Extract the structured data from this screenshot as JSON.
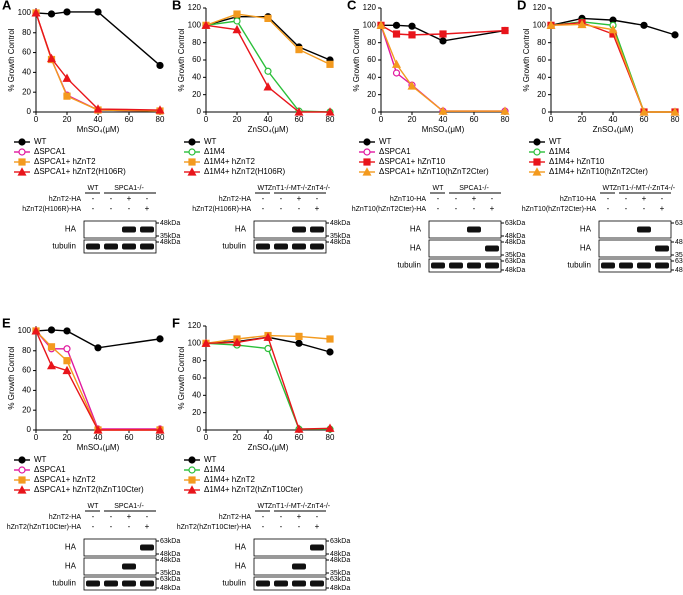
{
  "chart_data": [
    {
      "type": "line",
      "panel": "A",
      "ylabel": "% Growth Control",
      "xlabel": "MnSO₄(μM)",
      "x": [
        0,
        10,
        20,
        40,
        80
      ],
      "xlim": [
        0,
        80
      ],
      "xticks": [
        0,
        20,
        40,
        60,
        80
      ],
      "ylim": [
        0,
        105
      ],
      "yticks": [
        0,
        20,
        40,
        60,
        80,
        100
      ],
      "series": [
        {
          "name": "WT",
          "color": "#000000",
          "marker": "circle",
          "filled": true,
          "values": [
            100,
            99,
            101,
            101,
            47
          ]
        },
        {
          "name": "ΔSPCA1",
          "color": "#e0199f",
          "marker": "circle",
          "filled": false,
          "values": [
            100,
            53,
            17,
            2,
            1
          ]
        },
        {
          "name": "ΔSPCA1+ hZnT2",
          "color": "#f39a1e",
          "marker": "square",
          "filled": true,
          "values": [
            100,
            53,
            16,
            2,
            1
          ]
        },
        {
          "name": "ΔSPCA1+ hZnT2(H106R)",
          "color": "#e8151b",
          "marker": "triangle",
          "filled": true,
          "values": [
            100,
            54,
            34,
            3,
            2
          ]
        }
      ]
    },
    {
      "type": "line",
      "panel": "B",
      "ylabel": "% Growth Control",
      "xlabel": "ZnSO₄(μM)",
      "x": [
        0,
        20,
        40,
        60,
        80
      ],
      "xlim": [
        0,
        80
      ],
      "xticks": [
        0,
        20,
        40,
        60,
        80
      ],
      "ylim": [
        0,
        120
      ],
      "yticks": [
        0,
        20,
        40,
        60,
        80,
        100,
        120
      ],
      "series": [
        {
          "name": "WT",
          "color": "#000000",
          "marker": "circle",
          "filled": true,
          "values": [
            100,
            110,
            110,
            75,
            60
          ]
        },
        {
          "name": "Δ1M4",
          "color": "#2bbf3a",
          "marker": "circle",
          "filled": false,
          "values": [
            100,
            105,
            47,
            1,
            0
          ]
        },
        {
          "name": "Δ1M4+ hZnT2",
          "color": "#f39a1e",
          "marker": "square",
          "filled": true,
          "values": [
            100,
            113,
            108,
            72,
            55
          ]
        },
        {
          "name": "Δ1M4+ hZnT2(H106R)",
          "color": "#e8151b",
          "marker": "triangle",
          "filled": true,
          "values": [
            100,
            95,
            29,
            0,
            0
          ]
        }
      ]
    },
    {
      "type": "line",
      "panel": "C",
      "ylabel": "% Growth Control",
      "xlabel": "MnSO₄(μM)",
      "x": [
        0,
        10,
        20,
        40,
        80
      ],
      "xlim": [
        0,
        80
      ],
      "xticks": [
        0,
        20,
        40,
        60,
        80
      ],
      "ylim": [
        0,
        120
      ],
      "yticks": [
        0,
        20,
        40,
        60,
        80,
        100,
        120
      ],
      "series": [
        {
          "name": "WT",
          "color": "#000000",
          "marker": "circle",
          "filled": true,
          "values": [
            100,
            100,
            99,
            82,
            94
          ]
        },
        {
          "name": "ΔSPCA1",
          "color": "#e0199f",
          "marker": "circle",
          "filled": false,
          "values": [
            100,
            45,
            31,
            1,
            1
          ]
        },
        {
          "name": "ΔSPCA1+ hZnT10",
          "color": "#e8151b",
          "marker": "square",
          "filled": true,
          "values": [
            100,
            90,
            89,
            90,
            94
          ]
        },
        {
          "name": "ΔSPCA1+ hZnT10(hZnT2Cter)",
          "color": "#f39a1e",
          "marker": "triangle",
          "filled": true,
          "values": [
            100,
            55,
            30,
            1,
            1
          ]
        }
      ]
    },
    {
      "type": "line",
      "panel": "D",
      "ylabel": "% Growth Control",
      "xlabel": "ZnSO₄(μM)",
      "x": [
        0,
        20,
        40,
        60,
        80
      ],
      "xlim": [
        0,
        80
      ],
      "xticks": [
        0,
        20,
        40,
        60,
        80
      ],
      "ylim": [
        0,
        120
      ],
      "yticks": [
        0,
        20,
        40,
        60,
        80,
        100,
        120
      ],
      "series": [
        {
          "name": "WT",
          "color": "#000000",
          "marker": "circle",
          "filled": true,
          "values": [
            100,
            108,
            106,
            100,
            89
          ]
        },
        {
          "name": "Δ1M4",
          "color": "#2bbf3a",
          "marker": "circle",
          "filled": false,
          "values": [
            100,
            104,
            100,
            0,
            0
          ]
        },
        {
          "name": "Δ1M4+ hZnT10",
          "color": "#e8151b",
          "marker": "square",
          "filled": true,
          "values": [
            100,
            103,
            90,
            0,
            0
          ]
        },
        {
          "name": "Δ1M4+ hZnT10(hZnT2Cter)",
          "color": "#f39a1e",
          "marker": "triangle",
          "filled": true,
          "values": [
            100,
            101,
            95,
            0,
            0
          ]
        }
      ]
    },
    {
      "type": "line",
      "panel": "E",
      "ylabel": "% Growth Control",
      "xlabel": "MnSO₄(μM)",
      "x": [
        0,
        10,
        20,
        40,
        80
      ],
      "xlim": [
        0,
        80
      ],
      "xticks": [
        0,
        20,
        40,
        60,
        80
      ],
      "ylim": [
        0,
        105
      ],
      "yticks": [
        0,
        20,
        40,
        60,
        80,
        100
      ],
      "series": [
        {
          "name": "WT",
          "color": "#000000",
          "marker": "circle",
          "filled": true,
          "values": [
            100,
            101,
            100,
            83,
            92
          ]
        },
        {
          "name": "ΔSPCA1",
          "color": "#e0199f",
          "marker": "circle",
          "filled": false,
          "values": [
            100,
            82,
            82,
            1,
            1
          ]
        },
        {
          "name": "ΔSPCA1+ hZnT2",
          "color": "#f39a1e",
          "marker": "square",
          "filled": true,
          "values": [
            100,
            84,
            70,
            0,
            0
          ]
        },
        {
          "name": "ΔSPCA1+ hZnT2(hZnT10Cter)",
          "color": "#e8151b",
          "marker": "triangle",
          "filled": true,
          "values": [
            100,
            65,
            60,
            0,
            0
          ]
        }
      ]
    },
    {
      "type": "line",
      "panel": "F",
      "ylabel": "% Growth Control",
      "xlabel": "ZnSO₄(μM)",
      "x": [
        0,
        20,
        40,
        60,
        80
      ],
      "xlim": [
        0,
        80
      ],
      "xticks": [
        0,
        20,
        40,
        60,
        80
      ],
      "ylim": [
        0,
        120
      ],
      "yticks": [
        0,
        20,
        40,
        60,
        80,
        100,
        120
      ],
      "series": [
        {
          "name": "WT",
          "color": "#000000",
          "marker": "circle",
          "filled": true,
          "values": [
            100,
            102,
            107,
            100,
            90
          ]
        },
        {
          "name": "Δ1M4",
          "color": "#2bbf3a",
          "marker": "circle",
          "filled": false,
          "values": [
            100,
            98,
            94,
            1,
            1
          ]
        },
        {
          "name": "Δ1M4+ hZnT2",
          "color": "#f39a1e",
          "marker": "square",
          "filled": true,
          "values": [
            100,
            105,
            109,
            108,
            105
          ]
        },
        {
          "name": "Δ1M4+ hZnT2(hZnT10Cter)",
          "color": "#e8151b",
          "marker": "triangle",
          "filled": true,
          "values": [
            100,
            101,
            107,
            1,
            2
          ]
        }
      ]
    }
  ],
  "blots": [
    {
      "groups": [
        "WT",
        "SPCA1-/-"
      ],
      "rows": [
        {
          "label": "hZnT2-HA",
          "signs": [
            "-",
            "-",
            "+",
            "-"
          ]
        },
        {
          "label": "hZnT2(H106R)-HA",
          "signs": [
            "-",
            "-",
            "-",
            "+"
          ]
        }
      ],
      "panels": [
        {
          "label": "HA",
          "markers": [
            "48kDa",
            "35kDa"
          ]
        },
        {
          "label": "tubulin",
          "markers": [
            "48kDa"
          ]
        }
      ]
    },
    {
      "groups": [
        "WT",
        "ZnT1-/-MT-/-ZnT4-/-"
      ],
      "rows": [
        {
          "label": "hZnT2-HA",
          "signs": [
            "-",
            "-",
            "+",
            "-"
          ]
        },
        {
          "label": "hZnT2(H106R)-HA",
          "signs": [
            "-",
            "-",
            "-",
            "+"
          ]
        }
      ],
      "panels": [
        {
          "label": "HA",
          "markers": [
            "48kDa",
            "35kDa"
          ]
        },
        {
          "label": "tubulin",
          "markers": [
            "48kDa"
          ]
        }
      ]
    },
    {
      "groups": [
        "WT",
        "SPCA1-/-"
      ],
      "rows": [
        {
          "label": "hZnT10-HA",
          "signs": [
            "-",
            "-",
            "+",
            "-"
          ]
        },
        {
          "label": "hZnT10(hZnT2Cter)-HA",
          "signs": [
            "-",
            "-",
            "-",
            "+"
          ]
        }
      ],
      "panels": [
        {
          "label": "HA",
          "markers": [
            "63kDa",
            "48kDa"
          ]
        },
        {
          "label": "HA",
          "markers": [
            "48kDa",
            "35kDa"
          ]
        },
        {
          "label": "tubulin",
          "markers": [
            "63kDa",
            "48kDa"
          ]
        }
      ]
    },
    {
      "groups": [
        "WT",
        "ZnT1-/-MT-/-ZnT4-/-"
      ],
      "rows": [
        {
          "label": "hZnT10-HA",
          "signs": [
            "-",
            "-",
            "+",
            "-"
          ]
        },
        {
          "label": "hZnT10(hZnT2Cter)-HA",
          "signs": [
            "-",
            "-",
            "-",
            "+"
          ]
        }
      ],
      "panels": [
        {
          "label": "HA",
          "markers": [
            "63kDa"
          ]
        },
        {
          "label": "HA",
          "markers": [
            "48kDa",
            "35kDa"
          ]
        },
        {
          "label": "tubulin",
          "markers": [
            "63kDa",
            "48kDa"
          ]
        }
      ]
    },
    {
      "groups": [
        "WT",
        "SPCA1-/-"
      ],
      "rows": [
        {
          "label": "hZnT2-HA",
          "signs": [
            "-",
            "-",
            "+",
            "-"
          ]
        },
        {
          "label": "hZnT2(hZnT10Cter)-HA",
          "signs": [
            "-",
            "-",
            "-",
            "+"
          ]
        }
      ],
      "panels": [
        {
          "label": "HA",
          "markers": [
            "63kDa",
            "48kDa"
          ]
        },
        {
          "label": "HA",
          "markers": [
            "48kDa",
            "35kDa"
          ]
        },
        {
          "label": "tubulin",
          "markers": [
            "63kDa",
            "48kDa"
          ]
        }
      ]
    },
    {
      "groups": [
        "WT",
        "ZnT1-/-MT-/-ZnT4-/-"
      ],
      "rows": [
        {
          "label": "hZnT2-HA",
          "signs": [
            "-",
            "-",
            "+",
            "-"
          ]
        },
        {
          "label": "hZnT2(hZnT10Cter)-HA",
          "signs": [
            "-",
            "-",
            "-",
            "+"
          ]
        }
      ],
      "panels": [
        {
          "label": "HA",
          "markers": [
            "63kDa",
            "48kDa"
          ]
        },
        {
          "label": "HA",
          "markers": [
            "48kDa",
            "35kDa"
          ]
        },
        {
          "label": "tubulin",
          "markers": [
            "63kDa",
            "48kDa"
          ]
        }
      ]
    }
  ]
}
